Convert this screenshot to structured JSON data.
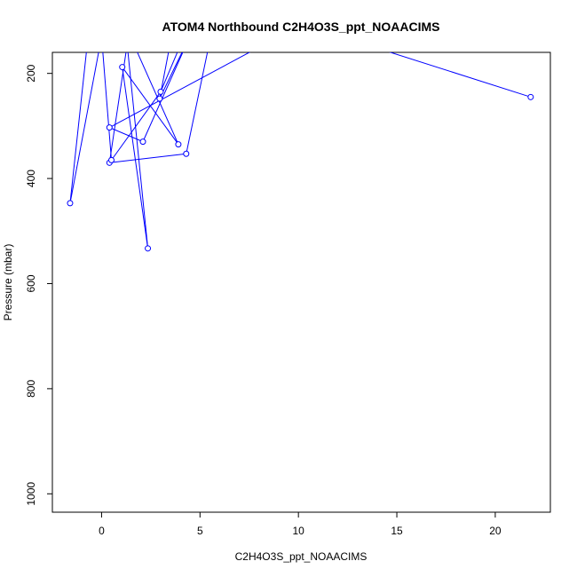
{
  "chart_data": {
    "type": "line",
    "title": "ATOM4 Northbound C2H4O3S_ppt_NOAACIMS",
    "xlabel": "C2H4O3S_ppt_NOAACIMS",
    "ylabel": "Pressure (mbar)",
    "xlim": [
      -2.5,
      22.8
    ],
    "ylim": [
      1035,
      160
    ],
    "y_reversed": true,
    "grid": false,
    "x_ticks": [
      0,
      5,
      10,
      15,
      20
    ],
    "y_ticks": [
      200,
      400,
      600,
      800,
      1000
    ],
    "series_color": "#0000ff",
    "series": [
      {
        "marker": "open-circle",
        "points": [
          {
            "x": 21.8,
            "y": 245
          },
          {
            "x": 13.0,
            "y": 140
          },
          {
            "x": 9.0,
            "y": 130
          },
          {
            "x": 0.4,
            "y": 303
          },
          {
            "x": 2.1,
            "y": 330
          },
          {
            "x": 4.6,
            "y": 120
          },
          {
            "x": 2.95,
            "y": 248
          },
          {
            "x": 3.5,
            "y": 140
          },
          {
            "x": 1.7,
            "y": 150
          },
          {
            "x": 3.9,
            "y": 335
          },
          {
            "x": 1.05,
            "y": 188
          },
          {
            "x": 2.35,
            "y": 533
          },
          {
            "x": 1.3,
            "y": 145
          },
          {
            "x": 0.4,
            "y": 370
          },
          {
            "x": 4.3,
            "y": 353
          },
          {
            "x": 5.6,
            "y": 120
          },
          {
            "x": 4.3,
            "y": 120
          },
          {
            "x": 3.0,
            "y": 235
          },
          {
            "x": 0.5,
            "y": 365
          },
          {
            "x": 0.0,
            "y": 130
          },
          {
            "x": -1.6,
            "y": 447
          },
          {
            "x": -0.6,
            "y": 100
          }
        ]
      }
    ]
  }
}
